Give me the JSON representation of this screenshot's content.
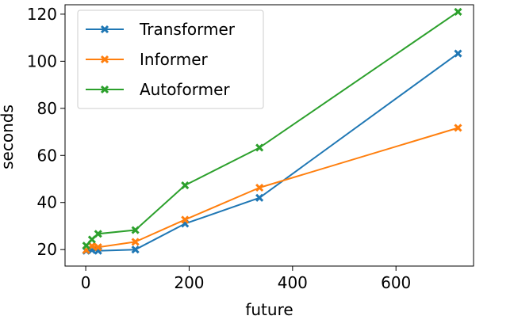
{
  "chart_data": {
    "type": "line",
    "title": "",
    "xlabel": "future",
    "ylabel": "seconds",
    "xlim": [
      -40,
      750
    ],
    "ylim": [
      13,
      124
    ],
    "xticks": [
      0,
      200,
      400,
      600
    ],
    "yticks": [
      20,
      40,
      60,
      80,
      100,
      120
    ],
    "grid": false,
    "legend_position": "top-left",
    "marker": "x",
    "series": [
      {
        "name": "Transformer",
        "color": "#1f77b4",
        "points": [
          [
            1,
            19.5
          ],
          [
            12,
            19.8
          ],
          [
            24,
            19.5
          ],
          [
            96,
            20.0
          ],
          [
            192,
            31.0
          ],
          [
            336,
            42.0
          ],
          [
            720,
            103.3
          ]
        ]
      },
      {
        "name": "Informer",
        "color": "#ff7f0e",
        "points": [
          [
            1,
            19.8
          ],
          [
            12,
            21.5
          ],
          [
            24,
            21.0
          ],
          [
            96,
            23.3
          ],
          [
            192,
            32.7
          ],
          [
            336,
            46.3
          ],
          [
            720,
            71.7
          ]
        ]
      },
      {
        "name": "Autoformer",
        "color": "#2ca02c",
        "points": [
          [
            1,
            21.7
          ],
          [
            12,
            24.3
          ],
          [
            24,
            26.7
          ],
          [
            96,
            28.3
          ],
          [
            192,
            47.3
          ],
          [
            336,
            63.3
          ],
          [
            720,
            121.0
          ]
        ]
      }
    ]
  }
}
